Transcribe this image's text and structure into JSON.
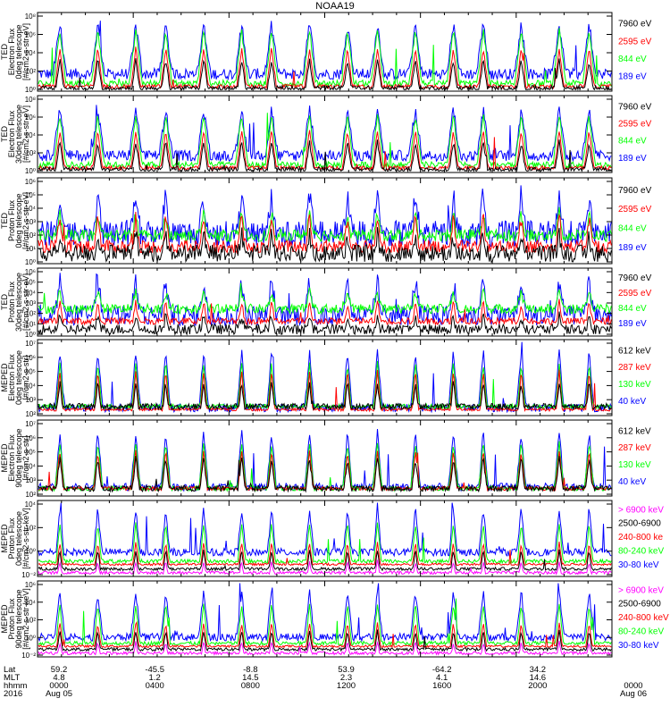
{
  "title": "NOAA19",
  "colors": {
    "black": "#000000",
    "red": "#ff0000",
    "green": "#00ff00",
    "blue": "#0000ff",
    "magenta": "#ff00ff"
  },
  "chart_data": [
    {
      "type": "line",
      "instrument": "TED",
      "ylabel": [
        "TED",
        "Electron Flux",
        "0deg telescope",
        "[#/cm2-s-str-eV]"
      ],
      "yticks": [
        "10⁰",
        "10²",
        "10⁴",
        "10⁶",
        "10⁸"
      ],
      "ylog": [
        0,
        8
      ],
      "series": [
        {
          "name": "7960 eV",
          "color": "black"
        },
        {
          "name": "2595 eV",
          "color": "red"
        },
        {
          "name": "844 eV",
          "color": "green"
        },
        {
          "name": "189 eV",
          "color": "blue"
        }
      ]
    },
    {
      "type": "line",
      "instrument": "TED",
      "ylabel": [
        "TED",
        "Electron Flux",
        "30deg telescope",
        "[#/cm2-s-str-eV]"
      ],
      "yticks": [
        "10⁰",
        "10²",
        "10⁴",
        "10⁶",
        "10⁸"
      ],
      "ylog": [
        0,
        8
      ],
      "series": [
        {
          "name": "7960 eV",
          "color": "black"
        },
        {
          "name": "2595 eV",
          "color": "red"
        },
        {
          "name": "844 eV",
          "color": "green"
        },
        {
          "name": "189 eV",
          "color": "blue"
        }
      ]
    },
    {
      "type": "line",
      "instrument": "TED",
      "ylabel": [
        "TED",
        "Proton Flux",
        "0deg telescope",
        "[#/cm2-s-str-eV]"
      ],
      "yticks": [
        "10⁰",
        "10¹",
        "10²",
        "10³",
        "10⁴",
        "10⁵",
        "10⁶"
      ],
      "ylog": [
        0,
        6
      ],
      "series": [
        {
          "name": "7960 eV",
          "color": "black"
        },
        {
          "name": "2595 eV",
          "color": "red"
        },
        {
          "name": "844 eV",
          "color": "green"
        },
        {
          "name": "189 eV",
          "color": "blue"
        }
      ]
    },
    {
      "type": "line",
      "instrument": "TED",
      "ylabel": [
        "TED",
        "Proton Flux",
        "30deg telescope",
        "[#/cm2-s-str-eV]"
      ],
      "yticks": [
        "10⁰",
        "10¹",
        "10²",
        "10³",
        "10⁴",
        "10⁵",
        "10⁶"
      ],
      "ylog": [
        0,
        6
      ],
      "series": [
        {
          "name": "7960 eV",
          "color": "black"
        },
        {
          "name": "2595 eV",
          "color": "red"
        },
        {
          "name": "844 eV",
          "color": "green"
        },
        {
          "name": "189 eV",
          "color": "blue"
        }
      ]
    },
    {
      "type": "line",
      "instrument": "MEPED",
      "ylabel": [
        "MEPED",
        "Electron Flux",
        "0deg telescope",
        "[#/cm2-s-str]"
      ],
      "yticks": [
        "10²",
        "10³",
        "10⁴",
        "10⁵",
        "10⁶",
        "10⁷"
      ],
      "ylog": [
        2,
        7
      ],
      "series": [
        {
          "name": "612 keV",
          "color": "black"
        },
        {
          "name": "287 keV",
          "color": "red"
        },
        {
          "name": "130 keV",
          "color": "green"
        },
        {
          "name": "40 keV",
          "color": "blue"
        }
      ]
    },
    {
      "type": "line",
      "instrument": "MEPED",
      "ylabel": [
        "MEPED",
        "Electron Flux",
        "90deg telescope",
        "[#/cm2-s-str]"
      ],
      "yticks": [
        "10²",
        "10³",
        "10⁴",
        "10⁵",
        "10⁶",
        "10⁷"
      ],
      "ylog": [
        2,
        7
      ],
      "series": [
        {
          "name": "612 keV",
          "color": "black"
        },
        {
          "name": "287 keV",
          "color": "red"
        },
        {
          "name": "130 keV",
          "color": "green"
        },
        {
          "name": "40 keV",
          "color": "blue"
        }
      ]
    },
    {
      "type": "line",
      "instrument": "MEPED",
      "ylabel": [
        "MEPED",
        "Proton Flux",
        "0deg telescope",
        "[#/cm2-s-str-keV]"
      ],
      "yticks": [
        "10⁻²",
        "10⁰",
        "10²",
        "10⁴"
      ],
      "ylog": [
        -2,
        6
      ],
      "series": [
        {
          "name": "> 6900 keV",
          "color": "magenta"
        },
        {
          "name": "2500-6900",
          "color": "black"
        },
        {
          "name": "240-800 ke",
          "color": "red"
        },
        {
          "name": "80-240 keV",
          "color": "green"
        },
        {
          "name": "30-80 keV",
          "color": "blue"
        }
      ]
    },
    {
      "type": "line",
      "instrument": "MEPED",
      "ylabel": [
        "MEPED",
        "Proton Flux",
        "90deg telescope",
        "[#/cm2-s-str-keV]"
      ],
      "yticks": [
        "10⁻²",
        "10⁰",
        "10²",
        "10⁴",
        "10⁶"
      ],
      "ylog": [
        -2,
        6
      ],
      "series": [
        {
          "name": "> 6900 keV",
          "color": "magenta"
        },
        {
          "name": "2500-6900",
          "color": "black"
        },
        {
          "name": "240-800 keV",
          "color": "red"
        },
        {
          "name": "80-240 keV",
          "color": "green"
        },
        {
          "name": "30-80 keV",
          "color": "blue"
        }
      ]
    }
  ],
  "footer": {
    "row_labels": [
      "Lat",
      "MLT",
      "hhmm",
      "2016"
    ],
    "columns": [
      {
        "lat": "59.2",
        "mlt": "4.8",
        "hhmm": "0000",
        "date": "Aug 05"
      },
      {
        "lat": "-45.5",
        "mlt": "1.2",
        "hhmm": "0400",
        "date": ""
      },
      {
        "lat": "-8.8",
        "mlt": "14.5",
        "hhmm": "0800",
        "date": ""
      },
      {
        "lat": "53.9",
        "mlt": "2.3",
        "hhmm": "1200",
        "date": ""
      },
      {
        "lat": "-64.2",
        "mlt": "4.1",
        "hhmm": "1600",
        "date": ""
      },
      {
        "lat": "34.2",
        "mlt": "14.6",
        "hhmm": "2000",
        "date": ""
      },
      {
        "lat": "",
        "mlt": "",
        "hhmm": "0000",
        "date": "Aug 06"
      }
    ]
  }
}
